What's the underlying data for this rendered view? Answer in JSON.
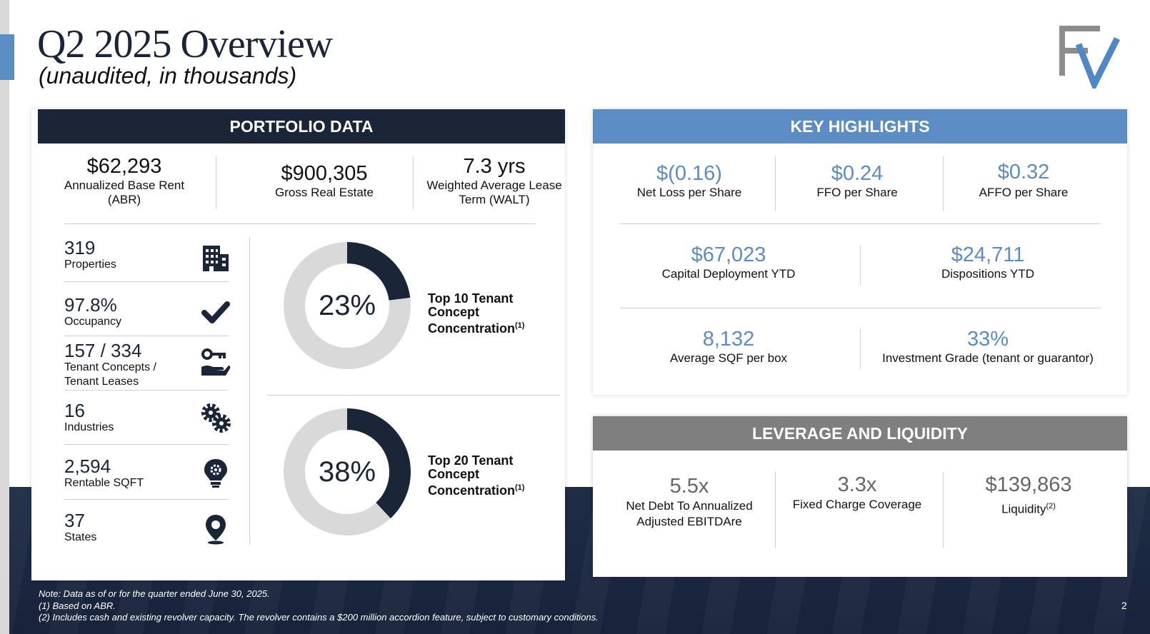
{
  "page": {
    "title": "Q2 2025 Overview",
    "subtitle": "(unaudited, in thousands)",
    "page_number": "2"
  },
  "portfolio": {
    "header": "PORTFOLIO DATA",
    "kpis": [
      {
        "value": "$62,293",
        "label": "Annualized Base Rent (ABR)"
      },
      {
        "value": "$900,305",
        "label": "Gross Real Estate"
      },
      {
        "value": "7.3 yrs",
        "label": "Weighted Average Lease Term (WALT)"
      }
    ],
    "stats": [
      {
        "value": "319",
        "label": "Properties",
        "icon": "building-icon"
      },
      {
        "value": "97.8%",
        "label": "Occupancy",
        "icon": "checkmark-icon"
      },
      {
        "value": "157 / 334",
        "label": "Tenant Concepts / Tenant Leases",
        "icon": "key-hand-icon"
      },
      {
        "value": "16",
        "label": "Industries",
        "icon": "gears-icon"
      },
      {
        "value": "2,594",
        "label": "Rentable SQFT",
        "icon": "lightbulb-gear-icon"
      },
      {
        "value": "37",
        "label": "States",
        "icon": "map-pin-icon"
      }
    ],
    "concentration": [
      {
        "percent_label": "23%",
        "fraction": 0.23,
        "caption": "Top 10 Tenant Concept Concentration",
        "note": "(1)"
      },
      {
        "percent_label": "38%",
        "fraction": 0.38,
        "caption": "Top 20 Tenant Concept Concentration",
        "note": "(1)"
      }
    ],
    "colors": {
      "filled": "#1a2538",
      "remaining": "#d9d9d9"
    }
  },
  "highlights": {
    "header": "KEY HIGHLIGHTS",
    "row1": [
      {
        "value": "$(0.16)",
        "label": "Net Loss per Share"
      },
      {
        "value": "$0.24",
        "label": "FFO per Share"
      },
      {
        "value": "$0.32",
        "label": "AFFO per Share"
      }
    ],
    "row2": [
      {
        "value": "$67,023",
        "label": "Capital Deployment YTD"
      },
      {
        "value": "$24,711",
        "label": "Dispositions YTD"
      }
    ],
    "row3": [
      {
        "value": "8,132",
        "label": "Average SQF per box"
      },
      {
        "value": "33%",
        "label": "Investment Grade (tenant or guarantor)"
      }
    ]
  },
  "leverage": {
    "header": "LEVERAGE AND LIQUIDITY",
    "items": [
      {
        "value": "5.5x",
        "label": "Net Debt To Annualized Adjusted EBITDAre"
      },
      {
        "value": "3.3x",
        "label": "Fixed Charge Coverage"
      },
      {
        "value": "$139,863",
        "label": "Liquidity",
        "note": "(2)"
      }
    ]
  },
  "footnotes": {
    "line1": "Note: Data as of or for the quarter ended June 30, 2025.",
    "line2": "(1) Based on ABR.",
    "line3": "(2) Includes cash and existing revolver capacity. The revolver contains a $200 million accordion feature, subject to customary conditions."
  }
}
